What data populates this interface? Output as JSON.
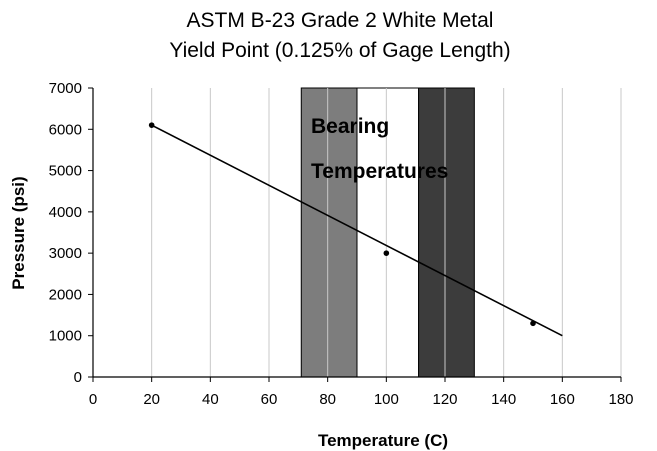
{
  "chart_data": {
    "type": "line",
    "title_line1": "ASTM B-23 Grade 2 White Metal",
    "title_line2": "Yield Point  (0.125% of Gage Length)",
    "xlabel": "Temperature (C)",
    "ylabel": "Pressure (psi)",
    "xlim": [
      0,
      180
    ],
    "ylim": [
      0,
      7000
    ],
    "x_ticks": [
      0,
      20,
      40,
      60,
      80,
      100,
      120,
      140,
      160,
      180
    ],
    "y_ticks": [
      0,
      1000,
      2000,
      3000,
      4000,
      5000,
      6000,
      7000
    ],
    "grid": "vertical",
    "series": [
      {
        "points": [
          [
            20,
            6100
          ],
          [
            100,
            3000
          ],
          [
            150,
            1300
          ]
        ],
        "trend_line": [
          [
            20,
            6100
          ],
          [
            160,
            1000
          ]
        ],
        "color": "#000000"
      }
    ],
    "bands": [
      {
        "x0": 71,
        "x1": 90,
        "color": "#7d7d7d"
      },
      {
        "x0": 90,
        "x1": 111,
        "color": "#ffffff"
      },
      {
        "x0": 111,
        "x1": 130,
        "color": "#3c3c3c"
      }
    ],
    "band_label_line1": "Bearing",
    "band_label_line2": "Temperatures"
  }
}
